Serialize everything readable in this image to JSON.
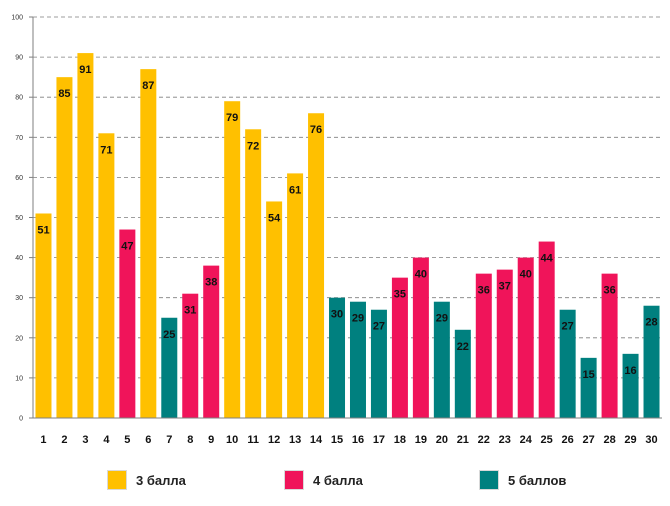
{
  "chart_data": {
    "type": "bar",
    "title": "",
    "xlabel": "",
    "ylabel": "",
    "ylim": [
      0,
      100
    ],
    "yticks": [
      0,
      10,
      20,
      30,
      40,
      50,
      60,
      70,
      80,
      90,
      100
    ],
    "grid": "dashed horizontal",
    "categories": [
      "1",
      "2",
      "3",
      "4",
      "5",
      "6",
      "7",
      "8",
      "9",
      "10",
      "11",
      "12",
      "13",
      "14",
      "15",
      "16",
      "17",
      "18",
      "19",
      "20",
      "21",
      "22",
      "23",
      "24",
      "25",
      "26",
      "27",
      "28",
      "29",
      "30"
    ],
    "values": [
      51,
      85,
      91,
      71,
      47,
      87,
      25,
      31,
      38,
      79,
      72,
      54,
      61,
      76,
      30,
      29,
      27,
      35,
      40,
      29,
      22,
      36,
      37,
      40,
      44,
      27,
      15,
      36,
      16,
      28
    ],
    "groups": [
      "3",
      "3",
      "3",
      "3",
      "4",
      "3",
      "5",
      "4",
      "4",
      "3",
      "3",
      "3",
      "3",
      "3",
      "5",
      "5",
      "5",
      "4",
      "4",
      "5",
      "5",
      "4",
      "4",
      "4",
      "4",
      "5",
      "5",
      "4",
      "5",
      "5"
    ],
    "legend": [
      {
        "key": "3",
        "label": "3 балла",
        "color": "#FFC000"
      },
      {
        "key": "4",
        "label": "4 балла",
        "color": "#F0145A"
      },
      {
        "key": "5",
        "label": "5 баллов",
        "color": "#00807F"
      }
    ],
    "legend_position": "bottom"
  }
}
